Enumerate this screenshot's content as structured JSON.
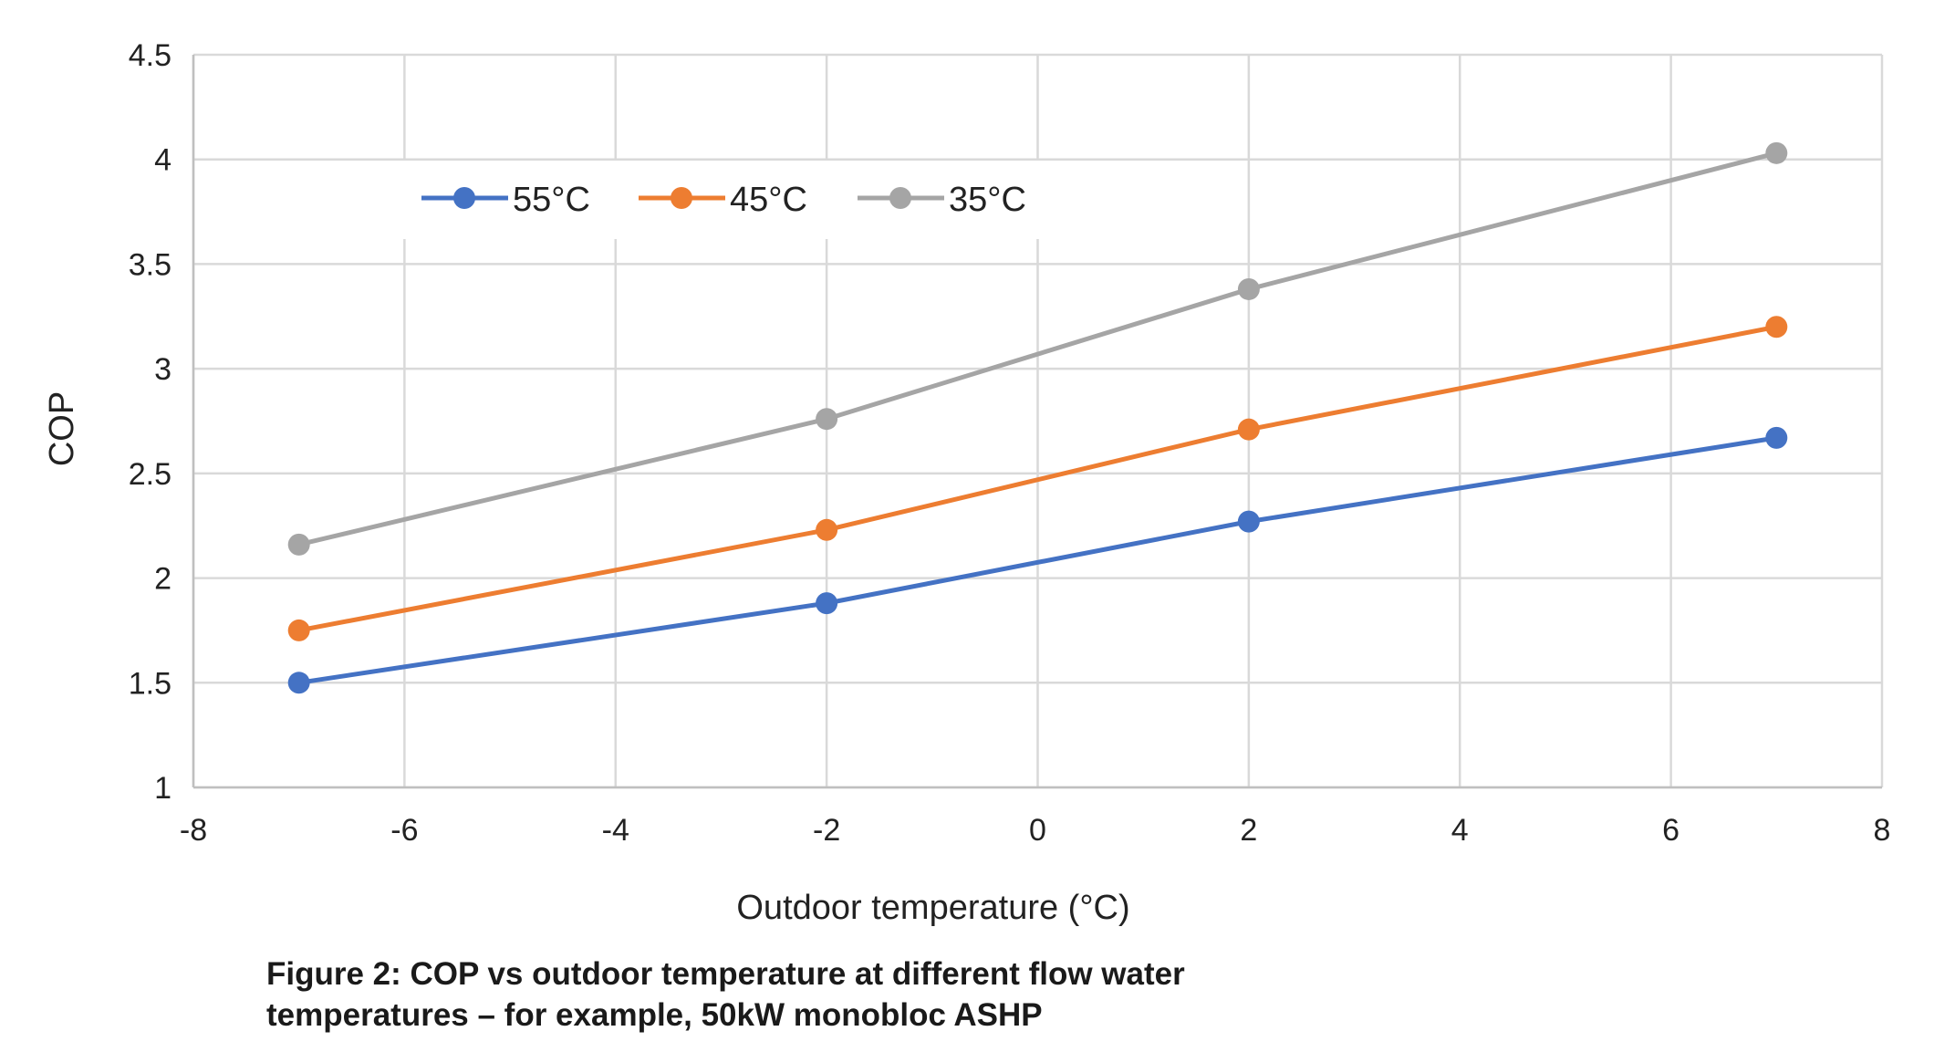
{
  "chart_data": {
    "type": "line",
    "xlabel": "Outdoor temperature (°C)",
    "ylabel": "COP",
    "xlim": [
      -8,
      8
    ],
    "ylim": [
      1,
      4.5
    ],
    "xticks": [
      "-8",
      "-6",
      "-4",
      "-2",
      "0",
      "2",
      "4",
      "6",
      "8"
    ],
    "yticks": [
      "1",
      "1.5",
      "2",
      "2.5",
      "3",
      "3.5",
      "4",
      "4.5"
    ],
    "xtick_values": [
      -8,
      -6,
      -4,
      -2,
      0,
      2,
      4,
      6,
      8
    ],
    "ytick_values": [
      1,
      1.5,
      2,
      2.5,
      3,
      3.5,
      4,
      4.5
    ],
    "grid": true,
    "legend_position": "top-left",
    "series": [
      {
        "name": "55°C",
        "color": "#4472c4",
        "x": [
          -7,
          -2,
          2,
          7
        ],
        "y": [
          1.5,
          1.88,
          2.27,
          2.67
        ]
      },
      {
        "name": "45°C",
        "color": "#ed7d31",
        "x": [
          -7,
          -2,
          2,
          7
        ],
        "y": [
          1.75,
          2.23,
          2.71,
          3.2
        ]
      },
      {
        "name": "35°C",
        "color": "#a5a5a5",
        "x": [
          -7,
          -2,
          2,
          7
        ],
        "y": [
          2.16,
          2.76,
          3.38,
          4.03
        ]
      }
    ]
  },
  "caption": {
    "line1": "Figure 2: COP vs outdoor temperature at different flow water",
    "line2": "temperatures – for example, 50kW monobloc ASHP"
  }
}
